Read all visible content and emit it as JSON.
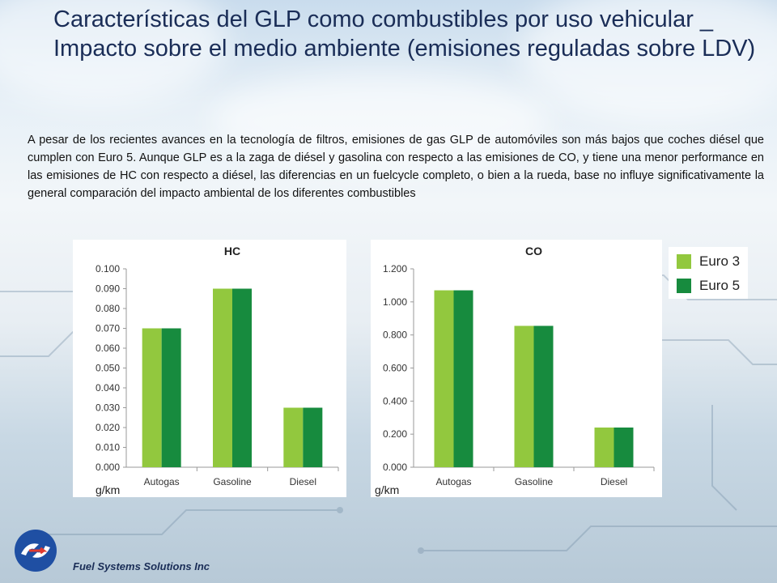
{
  "slide": {
    "title": "Características del GLP como combustibles por uso vehicular _ Impacto sobre el medio ambiente (emisiones reguladas sobre LDV)",
    "paragraph": "A pesar de los recientes avances en la tecnología de filtros, emisiones de gas GLP de automóviles son más bajos que coches diésel que cumplen con Euro 5. Aunque GLP es a la zaga de diésel y gasolina con respecto a las emisiones de CO, y tiene una menor performance en las emisiones de HC con respecto a diésel, las diferencias en un fuelcycle completo, o bien a la rueda, base no influye significativamente la general comparación del impacto ambiental de los diferentes combustibles",
    "footer": "Fuel Systems Solutions Inc"
  },
  "legend": {
    "items": [
      {
        "label": "Euro 3",
        "color": "#92c83e"
      },
      {
        "label": "Euro 5",
        "color": "#178b3e"
      }
    ]
  },
  "chart_data": [
    {
      "type": "bar",
      "title": "HC",
      "unit": "g/km",
      "categories": [
        "Autogas",
        "Gasoline",
        "Diesel"
      ],
      "series": [
        {
          "name": "Euro 3",
          "values": [
            0.07,
            0.09,
            0.03
          ]
        },
        {
          "name": "Euro 5",
          "values": [
            0.07,
            0.09,
            0.03
          ]
        }
      ],
      "ylim": [
        0,
        0.1
      ],
      "yticks": [
        "0.000",
        "0.010",
        "0.020",
        "0.030",
        "0.040",
        "0.050",
        "0.060",
        "0.070",
        "0.080",
        "0.090",
        "0.100"
      ],
      "grid": false,
      "legend": "right"
    },
    {
      "type": "bar",
      "title": "CO",
      "unit": "g/km",
      "categories": [
        "Autogas",
        "Gasoline",
        "Diesel"
      ],
      "series": [
        {
          "name": "Euro 3",
          "values": [
            1.07,
            0.855,
            0.24
          ]
        },
        {
          "name": "Euro 5",
          "values": [
            1.07,
            0.855,
            0.24
          ]
        }
      ],
      "ylim": [
        0,
        1.2
      ],
      "yticks": [
        "0.000",
        "0.200",
        "0.400",
        "0.600",
        "0.800",
        "1.000",
        "1.200"
      ],
      "grid": false,
      "legend": "right"
    }
  ]
}
